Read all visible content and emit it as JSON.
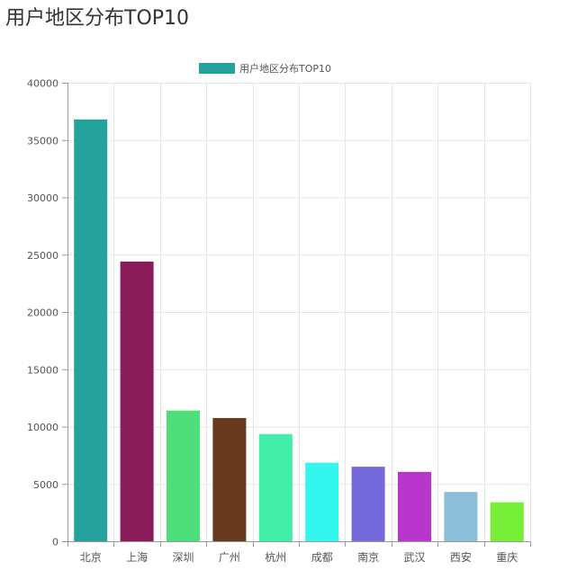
{
  "page": {
    "title": "用户地区分布TOP10"
  },
  "chart_data": {
    "type": "bar",
    "legend": {
      "label": "用户地区分布TOP10",
      "color": "#26a29c",
      "placement": "top-center"
    },
    "categories": [
      "北京",
      "上海",
      "深圳",
      "广州",
      "杭州",
      "成都",
      "南京",
      "武汉",
      "西安",
      "重庆"
    ],
    "series": [
      {
        "name": "用户地区分布TOP10",
        "values": [
          36800,
          24400,
          11400,
          10750,
          9350,
          6850,
          6500,
          6050,
          4300,
          3400
        ],
        "colors": [
          "#26a29c",
          "#8b1c5a",
          "#4fdf7a",
          "#673a1f",
          "#41eda9",
          "#33f6ef",
          "#7468da",
          "#b836cc",
          "#8bbfd9",
          "#77ee37"
        ]
      }
    ],
    "ylim": [
      0,
      40000
    ],
    "yticks": [
      0,
      5000,
      10000,
      15000,
      20000,
      25000,
      30000,
      35000,
      40000
    ],
    "grid": true,
    "xlabel": "",
    "ylabel": ""
  }
}
